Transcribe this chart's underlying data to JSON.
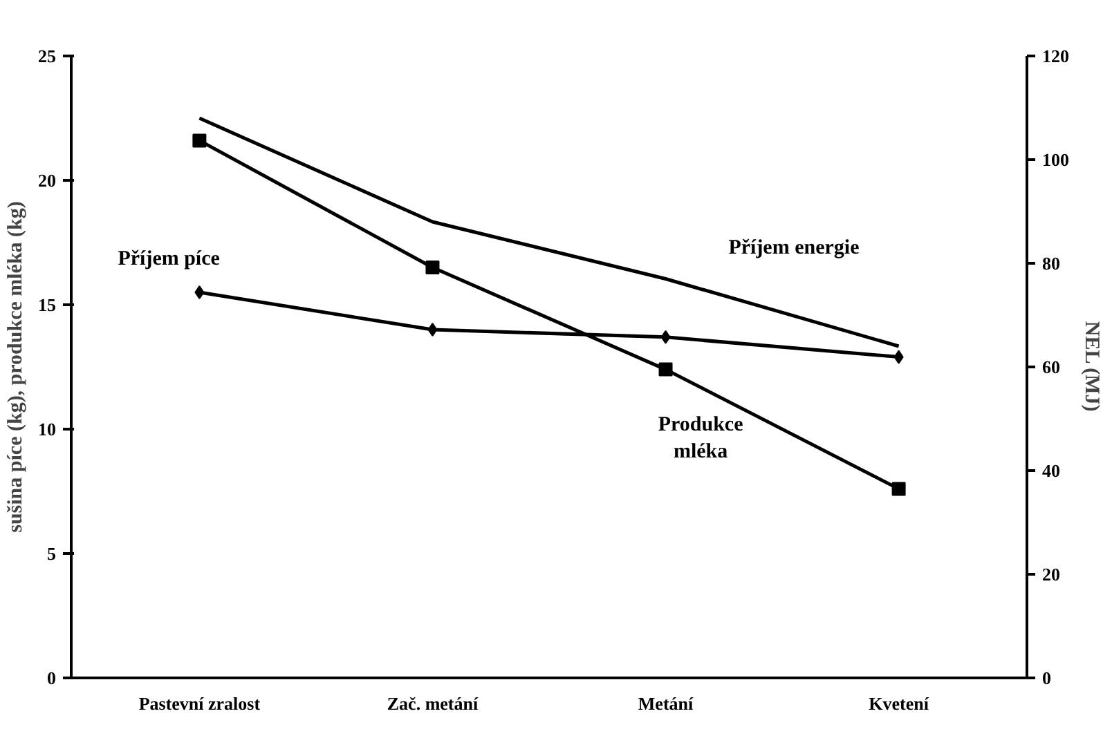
{
  "chart_data": {
    "type": "line",
    "categories": [
      "Pastevní zralost",
      "Zač. metání",
      "Metání",
      "Kvetení"
    ],
    "ylabel": "sušina píce (kg), produkce mléka (kg)",
    "y2label": "NEL (MJ)",
    "ylim": [
      0,
      25
    ],
    "yticks": [
      0,
      5,
      10,
      15,
      20,
      25
    ],
    "y2lim": [
      0,
      120
    ],
    "y2ticks": [
      0,
      20,
      40,
      60,
      80,
      100,
      120
    ],
    "grid": false,
    "series": [
      {
        "name": "Příjem píce",
        "color": "#000000",
        "marker": "diamond",
        "values": [
          15.5,
          14.0,
          13.7,
          12.9
        ]
      },
      {
        "name": "Produkce\nmléka",
        "color": "#000000",
        "marker": "square",
        "values": [
          21.6,
          16.5,
          12.4,
          7.6
        ]
      },
      {
        "name": "Příjem energie",
        "color": "#000000",
        "marker": "none",
        "axis": "y2",
        "values": [
          108,
          88,
          77,
          64
        ]
      }
    ]
  }
}
